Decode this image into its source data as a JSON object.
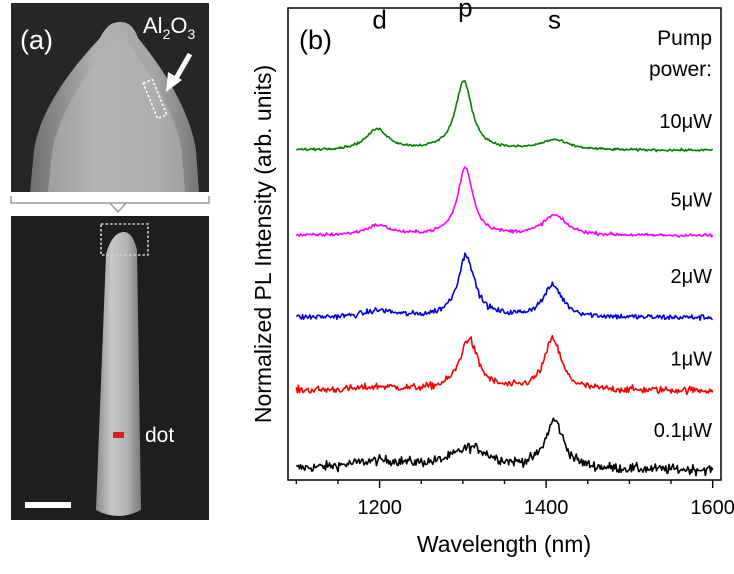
{
  "panel_a": {
    "label": "(a)",
    "material_prefix": "Al",
    "material_sub1": "2",
    "material_mid": "O",
    "material_sub2": "3",
    "dot_label": "dot",
    "colors": {
      "background": "#1c1c1c",
      "wire": "#b4b4b4",
      "dot": "#d22020",
      "annotation": "#ffffff"
    }
  },
  "chart_data": {
    "type": "line",
    "panel_label": "(b)",
    "xlabel": "Wavelength (nm)",
    "ylabel": "Normalized PL Intensity (arb. units)",
    "xlim": [
      1090,
      1610
    ],
    "xticks": [
      1200,
      1400,
      1600
    ],
    "xtick_labels": [
      "1200",
      "1400",
      "1600"
    ],
    "ylim": [
      0,
      5.7
    ],
    "yticks_visible": false,
    "legend_title_line1": "Pump",
    "legend_title_line2": "power:",
    "peak_labels": [
      {
        "text": "d",
        "x": 1200,
        "y": 5.45
      },
      {
        "text": "p",
        "x": 1303,
        "y": 5.6
      },
      {
        "text": "s",
        "x": 1410,
        "y": 5.45
      }
    ],
    "series": [
      {
        "name": "0.1μW",
        "color": "#000000",
        "offset": 0.0,
        "peaks": [
          [
            1200,
            0.1,
            50
          ],
          [
            1310,
            0.25,
            28
          ],
          [
            1410,
            0.58,
            13
          ]
        ],
        "base": 0.12,
        "noise": 0.06,
        "label_y": 0.52
      },
      {
        "name": "1μW",
        "color": "#ff0000",
        "offset": 1.0,
        "peaks": [
          [
            1200,
            0.04,
            28
          ],
          [
            1307,
            0.62,
            13
          ],
          [
            1408,
            0.62,
            12
          ]
        ],
        "base": 0.08,
        "noise": 0.045,
        "label_y": 1.38
      },
      {
        "name": "2μW",
        "color": "#0000dd",
        "offset": 1.9,
        "peaks": [
          [
            1200,
            0.08,
            22
          ],
          [
            1304,
            0.75,
            12
          ],
          [
            1408,
            0.38,
            14
          ]
        ],
        "base": 0.06,
        "noise": 0.035,
        "label_y": 2.38
      },
      {
        "name": "5μW",
        "color": "#ff00ff",
        "offset": 2.9,
        "peaks": [
          [
            1198,
            0.12,
            18
          ],
          [
            1303,
            0.82,
            11
          ],
          [
            1410,
            0.24,
            17
          ]
        ],
        "base": 0.05,
        "noise": 0.02,
        "label_y": 3.3
      },
      {
        "name": "10μW",
        "color": "#008000",
        "offset": 3.95,
        "peaks": [
          [
            1197,
            0.25,
            16
          ],
          [
            1301,
            0.83,
            12
          ],
          [
            1410,
            0.12,
            20
          ]
        ],
        "base": 0.03,
        "noise": 0.015,
        "label_y": 4.25
      }
    ]
  }
}
